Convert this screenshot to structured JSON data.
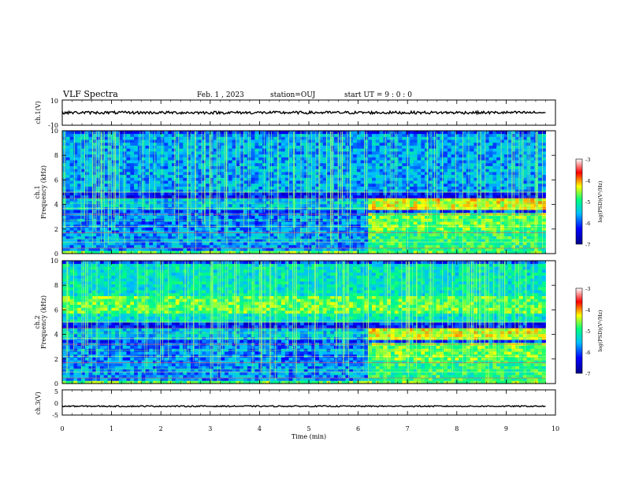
{
  "header": {
    "title": "VLF Spectra",
    "date": "Feb. 1 , 2023",
    "station": "station=OUJ",
    "start_time": "start UT =  9 : 0 : 0"
  },
  "colorbar": {
    "label": "log(PSD)(V²/Hz)",
    "ticks": [
      "-3",
      "-4",
      "-5",
      "-6",
      "-7"
    ],
    "range": [
      -7,
      -3
    ]
  },
  "chart_data": [
    {
      "type": "line",
      "ylabel": "ch.1(V)",
      "ylim": [
        -10,
        10
      ],
      "y_ticks": [
        "10",
        "-10"
      ],
      "x": [
        0,
        9.8
      ],
      "series": [
        {
          "values": [
            0,
            0
          ]
        }
      ],
      "color": "#000000"
    },
    {
      "type": "heatmap",
      "ylabel": "ch.1\nFrequency (kHz)",
      "ylim": [
        0,
        10
      ],
      "y_ticks": [
        "0",
        "2",
        "4",
        "6",
        "8",
        "10"
      ],
      "x_range_min": [
        0,
        9.8
      ],
      "colorscale": [
        "#00008b",
        "#0000ff",
        "#00bfff",
        "#00ff7f",
        "#ffff00",
        "#ff0000",
        "#ff66cc"
      ],
      "value_range": [
        -7,
        -3
      ]
    },
    {
      "type": "heatmap",
      "ylabel": "ch.2\nFrequency (kHz)",
      "ylim": [
        0,
        10
      ],
      "y_ticks": [
        "0",
        "2",
        "4",
        "6",
        "8",
        "10"
      ],
      "x_range_min": [
        0,
        9.8
      ],
      "colorscale": [
        "#00008b",
        "#0000ff",
        "#00bfff",
        "#00ff7f",
        "#ffff00",
        "#ff0000",
        "#ff66cc"
      ],
      "value_range": [
        -7,
        -3
      ]
    },
    {
      "type": "line",
      "ylabel": "ch.3(V)",
      "ylim": [
        -5,
        5
      ],
      "y_ticks": [
        "5",
        "0",
        "-5"
      ],
      "x": [
        0,
        9.8
      ],
      "series": [
        {
          "values": [
            -1.5,
            -1.5
          ]
        }
      ],
      "color": "#000000"
    }
  ],
  "xaxis": {
    "label": "Time (min)",
    "range": [
      0,
      10
    ],
    "ticks": [
      "0",
      "1",
      "2",
      "3",
      "4",
      "5",
      "6",
      "7",
      "8",
      "9",
      "10"
    ]
  }
}
